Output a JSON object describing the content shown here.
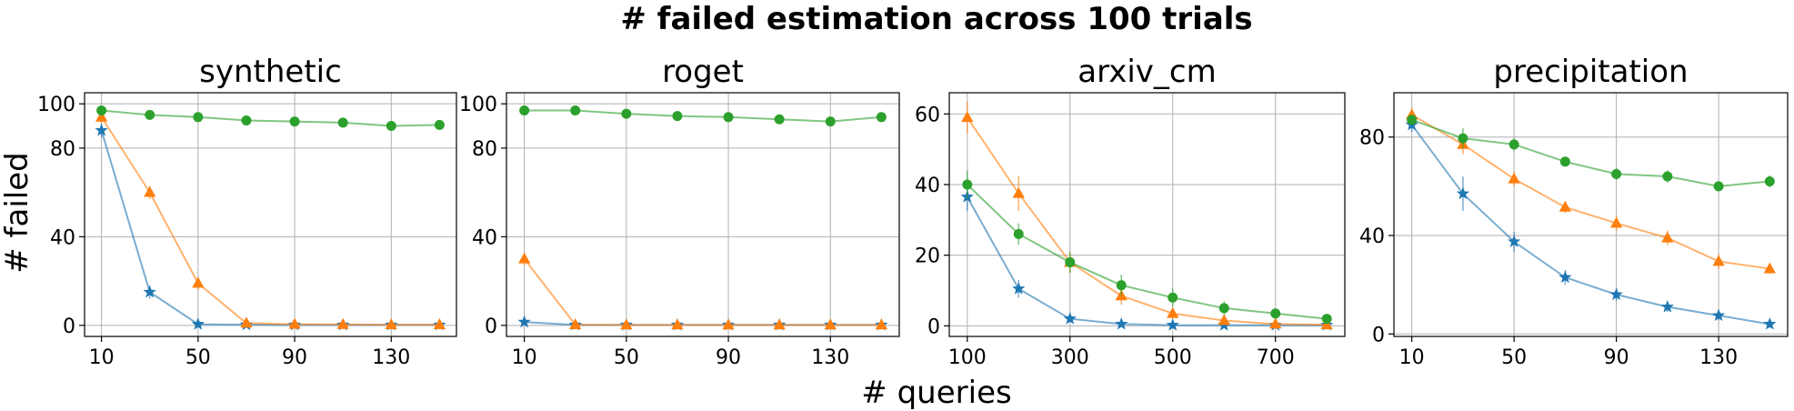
{
  "figure": {
    "suptitle": "# failed estimation across 100 trials",
    "xlabel": "# queries",
    "ylabel": "# failed"
  },
  "colors": {
    "blue": "#1f77b4",
    "orange": "#ff7f0e",
    "green": "#2ca02c"
  },
  "chart_data": [
    {
      "type": "line",
      "title": "synthetic",
      "x": [
        10,
        30,
        50,
        70,
        90,
        110,
        130,
        150
      ],
      "xticks": [
        10,
        50,
        90,
        130
      ],
      "yticks": [
        0,
        40,
        80,
        100
      ],
      "xlim": [
        3,
        157
      ],
      "ylim": [
        -5,
        105
      ],
      "series": [
        {
          "color": "blue",
          "marker": "star",
          "values": [
            88,
            15,
            0.5,
            0.3,
            0.2,
            0.2,
            0.2,
            0.2
          ],
          "err": [
            3,
            3,
            0.5,
            0.3,
            0.2,
            0.2,
            0.2,
            0.2
          ]
        },
        {
          "color": "orange",
          "marker": "triangle",
          "values": [
            94,
            60,
            19,
            1,
            0.5,
            0.4,
            0.3,
            0.3
          ],
          "err": [
            3,
            3,
            3,
            1,
            0.5,
            0.4,
            0.3,
            0.3
          ]
        },
        {
          "color": "green",
          "marker": "circle",
          "values": [
            97,
            95,
            94,
            92.5,
            92,
            91.5,
            90,
            90.5
          ],
          "err": [
            1,
            1,
            1,
            1,
            1,
            1,
            1,
            1
          ]
        }
      ]
    },
    {
      "type": "line",
      "title": "roget",
      "x": [
        10,
        30,
        50,
        70,
        90,
        110,
        130,
        150
      ],
      "xticks": [
        10,
        50,
        90,
        130
      ],
      "yticks": [
        0,
        40,
        80,
        100
      ],
      "xlim": [
        3,
        157
      ],
      "ylim": [
        -5,
        105
      ],
      "series": [
        {
          "color": "blue",
          "marker": "star",
          "values": [
            1.5,
            0.2,
            0.2,
            0.2,
            0.2,
            0.2,
            0.2,
            0.2
          ],
          "err": [
            1,
            0.2,
            0.2,
            0.2,
            0.2,
            0.2,
            0.2,
            0.2
          ]
        },
        {
          "color": "orange",
          "marker": "triangle",
          "values": [
            30,
            0.3,
            0.2,
            0.2,
            0.2,
            0.2,
            0.2,
            0.2
          ],
          "err": [
            3,
            0.3,
            0.2,
            0.2,
            0.2,
            0.2,
            0.2,
            0.2
          ]
        },
        {
          "color": "green",
          "marker": "circle",
          "values": [
            97,
            97,
            95.5,
            94.5,
            94,
            93,
            92,
            94
          ],
          "err": [
            1,
            1,
            1,
            1,
            1,
            1,
            1,
            1
          ]
        }
      ]
    },
    {
      "type": "line",
      "title": "arxiv_cm",
      "x": [
        100,
        200,
        300,
        400,
        500,
        600,
        700,
        800
      ],
      "xticks": [
        100,
        300,
        500,
        700
      ],
      "yticks": [
        0,
        20,
        40,
        60
      ],
      "xlim": [
        65,
        835
      ],
      "ylim": [
        -3,
        66
      ],
      "series": [
        {
          "color": "blue",
          "marker": "star",
          "values": [
            36.5,
            10.5,
            2,
            0.5,
            0.2,
            0.2,
            0.2,
            0.2
          ],
          "err": [
            4,
            2.5,
            1,
            0.5,
            0.2,
            0.2,
            0.2,
            0.2
          ]
        },
        {
          "color": "orange",
          "marker": "triangle",
          "values": [
            59,
            37.5,
            18,
            8.5,
            3.5,
            1.5,
            0.5,
            0.3
          ],
          "err": [
            4.5,
            5,
            3,
            2.5,
            1.5,
            1,
            0.5,
            0.3
          ]
        },
        {
          "color": "green",
          "marker": "circle",
          "values": [
            40,
            26,
            18,
            11.5,
            8,
            5,
            3.5,
            2
          ],
          "err": [
            4,
            3,
            3,
            3,
            2.5,
            2,
            1.5,
            1
          ]
        }
      ]
    },
    {
      "type": "line",
      "title": "precipitation",
      "x": [
        10,
        30,
        50,
        70,
        90,
        110,
        130,
        150
      ],
      "xticks": [
        10,
        50,
        90,
        130
      ],
      "yticks": [
        0,
        40,
        80
      ],
      "xlim": [
        3,
        157
      ],
      "ylim": [
        -1,
        98
      ],
      "series": [
        {
          "color": "blue",
          "marker": "star",
          "values": [
            85,
            57,
            37.5,
            23,
            16,
            11,
            7.5,
            4
          ],
          "err": [
            3,
            7,
            4,
            3,
            2.5,
            2,
            2,
            1.5
          ]
        },
        {
          "color": "orange",
          "marker": "triangle",
          "values": [
            89,
            77,
            63,
            51.5,
            45,
            39,
            29.5,
            26.5
          ],
          "err": [
            3,
            4,
            3,
            2.5,
            3,
            3,
            3,
            2
          ]
        },
        {
          "color": "green",
          "marker": "circle",
          "values": [
            87,
            79.5,
            77,
            70,
            65,
            64,
            60,
            62
          ],
          "err": [
            2,
            4,
            2.5,
            2,
            2.5,
            2.5,
            2,
            2.5
          ]
        }
      ]
    }
  ]
}
